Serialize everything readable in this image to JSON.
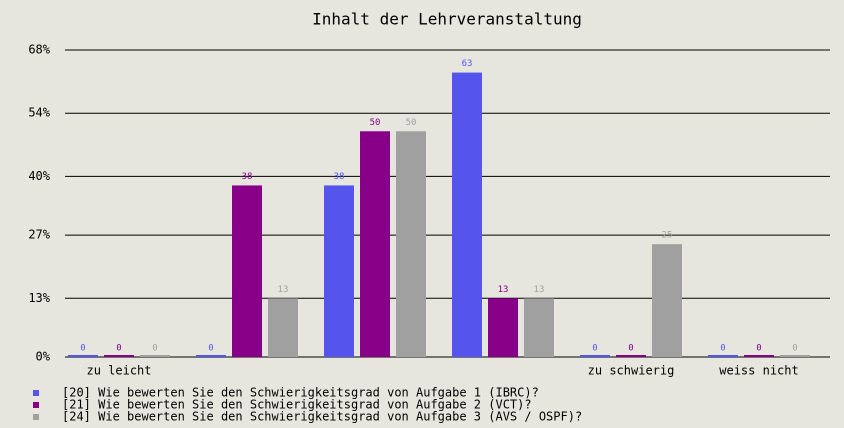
{
  "chart_data": {
    "type": "bar",
    "title": "Inhalt der Lehrveranstaltung",
    "categories": [
      "zu leicht",
      null,
      null,
      null,
      "zu schwierig",
      "weiss nicht"
    ],
    "series": [
      {
        "name": "[20] Wie bewerten Sie den Schwierigkeitsgrad von Aufgabe 1 (IBRC)?",
        "color": "#5555ee",
        "values": [
          0,
          0,
          38,
          63,
          0,
          0
        ]
      },
      {
        "name": "[21] Wie bewerten Sie den Schwierigkeitsgrad von Aufgabe 2 (VCT)?",
        "color": "#880088",
        "values": [
          0,
          38,
          50,
          13,
          0,
          0
        ]
      },
      {
        "name": "[24] Wie bewerten Sie den Schwierigkeitsgrad von Aufgabe 3 (AVS / OSPF)?",
        "color": "#a0a0a0",
        "values": [
          0,
          13,
          50,
          13,
          25,
          0
        ]
      }
    ],
    "ylim": [
      0,
      68
    ],
    "yticks": [
      {
        "value": 0,
        "label": "0%"
      },
      {
        "value": 13,
        "label": "13%"
      },
      {
        "value": 27,
        "label": "27%"
      },
      {
        "value": 40,
        "label": "40%"
      },
      {
        "value": 54,
        "label": "54%"
      },
      {
        "value": 68,
        "label": "68%"
      }
    ],
    "grid": true
  }
}
